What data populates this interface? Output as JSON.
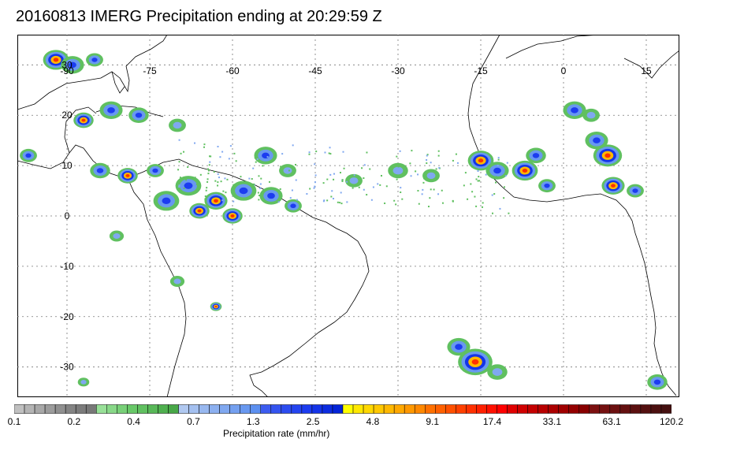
{
  "title": "20160813 IMERG Precipitation ending at 20:29:59 Z",
  "map": {
    "lon_range": [
      -99,
      21
    ],
    "lat_range": [
      36,
      -36
    ],
    "lon_ticks": [
      {
        "value": -90,
        "label": "-90"
      },
      {
        "value": -75,
        "label": "-75"
      },
      {
        "value": -60,
        "label": "-60"
      },
      {
        "value": -45,
        "label": "-45"
      },
      {
        "value": -30,
        "label": "-30"
      },
      {
        "value": -15,
        "label": "-15"
      },
      {
        "value": 0,
        "label": "0"
      },
      {
        "value": 15,
        "label": "15"
      }
    ],
    "lat_ticks": [
      {
        "value": 30,
        "label": "30"
      },
      {
        "value": 20,
        "label": "20"
      },
      {
        "value": 10,
        "label": "10"
      },
      {
        "value": 0,
        "label": "0"
      },
      {
        "value": -10,
        "label": "-10"
      },
      {
        "value": -20,
        "label": "-20"
      },
      {
        "value": -30,
        "label": "-30"
      }
    ],
    "gridlines": true,
    "precip_cells": [
      {
        "lon": -92,
        "lat": 31,
        "r": 1.8,
        "level": "high"
      },
      {
        "lon": -89,
        "lat": 30,
        "r": 1.6,
        "level": "mid"
      },
      {
        "lon": -85,
        "lat": 31,
        "r": 1.2,
        "level": "mid"
      },
      {
        "lon": -97,
        "lat": 12,
        "r": 1.2,
        "level": "mid"
      },
      {
        "lon": -87,
        "lat": 19,
        "r": 1.4,
        "level": "high"
      },
      {
        "lon": -82,
        "lat": 21,
        "r": 1.6,
        "level": "mid"
      },
      {
        "lon": -77,
        "lat": 20,
        "r": 1.4,
        "level": "mid"
      },
      {
        "lon": -70,
        "lat": 18,
        "r": 1.2,
        "level": "low"
      },
      {
        "lon": -84,
        "lat": 9,
        "r": 1.4,
        "level": "mid"
      },
      {
        "lon": -79,
        "lat": 8,
        "r": 1.4,
        "level": "high"
      },
      {
        "lon": -74,
        "lat": 9,
        "r": 1.2,
        "level": "mid"
      },
      {
        "lon": -72,
        "lat": 3,
        "r": 1.8,
        "level": "mid"
      },
      {
        "lon": -68,
        "lat": 6,
        "r": 1.8,
        "level": "mid"
      },
      {
        "lon": -63,
        "lat": 3,
        "r": 1.6,
        "level": "high"
      },
      {
        "lon": -58,
        "lat": 5,
        "r": 1.8,
        "level": "mid"
      },
      {
        "lon": -53,
        "lat": 4,
        "r": 1.6,
        "level": "mid"
      },
      {
        "lon": -66,
        "lat": 1,
        "r": 1.4,
        "level": "high"
      },
      {
        "lon": -60,
        "lat": 0,
        "r": 1.4,
        "level": "high"
      },
      {
        "lon": -49,
        "lat": 2,
        "r": 1.2,
        "level": "mid"
      },
      {
        "lon": -54,
        "lat": 12,
        "r": 1.6,
        "level": "mid"
      },
      {
        "lon": -50,
        "lat": 9,
        "r": 1.2,
        "level": "low"
      },
      {
        "lon": -38,
        "lat": 7,
        "r": 1.2,
        "level": "low"
      },
      {
        "lon": -30,
        "lat": 9,
        "r": 1.4,
        "level": "low"
      },
      {
        "lon": -24,
        "lat": 8,
        "r": 1.2,
        "level": "low"
      },
      {
        "lon": -15,
        "lat": 11,
        "r": 1.8,
        "level": "high"
      },
      {
        "lon": -12,
        "lat": 9,
        "r": 1.6,
        "level": "mid"
      },
      {
        "lon": -7,
        "lat": 9,
        "r": 1.8,
        "level": "high"
      },
      {
        "lon": -5,
        "lat": 12,
        "r": 1.4,
        "level": "mid"
      },
      {
        "lon": -3,
        "lat": 6,
        "r": 1.2,
        "level": "mid"
      },
      {
        "lon": 2,
        "lat": 21,
        "r": 1.6,
        "level": "mid"
      },
      {
        "lon": 5,
        "lat": 20,
        "r": 1.2,
        "level": "low"
      },
      {
        "lon": 8,
        "lat": 12,
        "r": 2.0,
        "level": "high"
      },
      {
        "lon": 6,
        "lat": 15,
        "r": 1.6,
        "level": "mid"
      },
      {
        "lon": 9,
        "lat": 6,
        "r": 1.6,
        "level": "high"
      },
      {
        "lon": 13,
        "lat": 5,
        "r": 1.2,
        "level": "mid"
      },
      {
        "lon": -81,
        "lat": -4,
        "r": 1.0,
        "level": "low"
      },
      {
        "lon": -70,
        "lat": -13,
        "r": 1.0,
        "level": "low"
      },
      {
        "lon": -63,
        "lat": -18,
        "r": 0.8,
        "level": "high"
      },
      {
        "lon": -16,
        "lat": -29,
        "r": 2.4,
        "level": "high"
      },
      {
        "lon": -19,
        "lat": -26,
        "r": 1.6,
        "level": "mid"
      },
      {
        "lon": -12,
        "lat": -31,
        "r": 1.4,
        "level": "low"
      },
      {
        "lon": 17,
        "lat": -33,
        "r": 1.4,
        "level": "mid"
      },
      {
        "lon": -87,
        "lat": -33,
        "r": 0.8,
        "level": "low"
      }
    ]
  },
  "colorbar": {
    "colors": [
      "#c0c0c0",
      "#b4b4b4",
      "#a8a8a8",
      "#9c9c9c",
      "#909090",
      "#848484",
      "#7c7c7c",
      "#787878",
      "#98e098",
      "#88d888",
      "#78d078",
      "#68c868",
      "#60c060",
      "#58b858",
      "#4fb04f",
      "#48a848",
      "#b0c8f0",
      "#a4c0f0",
      "#98b8f0",
      "#8cb0f0",
      "#80a8f0",
      "#74a0f0",
      "#6898f0",
      "#5c90f0",
      "#3c5cf0",
      "#3454f0",
      "#2c4cf0",
      "#2444f0",
      "#1c3cf0",
      "#1434e8",
      "#0c2ce0",
      "#0424d8",
      "#ffff00",
      "#ffe800",
      "#ffd800",
      "#ffc800",
      "#ffb800",
      "#ffa800",
      "#ff9800",
      "#ff8800",
      "#ff7000",
      "#ff6000",
      "#ff5000",
      "#ff4000",
      "#ff3000",
      "#ff2000",
      "#ff1000",
      "#ff0000",
      "#e00000",
      "#d00000",
      "#c40000",
      "#b80000",
      "#ac0000",
      "#a00000",
      "#940000",
      "#880000",
      "#7c1010",
      "#741010",
      "#6c1010",
      "#641010",
      "#5c1010",
      "#541010",
      "#4c1010",
      "#441010"
    ],
    "labels": [
      "0.1",
      "0.2",
      "0.4",
      "0.7",
      "1.3",
      "2.5",
      "4.8",
      "9.1",
      "17.4",
      "33.1",
      "63.1",
      "120.2"
    ],
    "title": "Precipitation rate (mm/hr)"
  }
}
